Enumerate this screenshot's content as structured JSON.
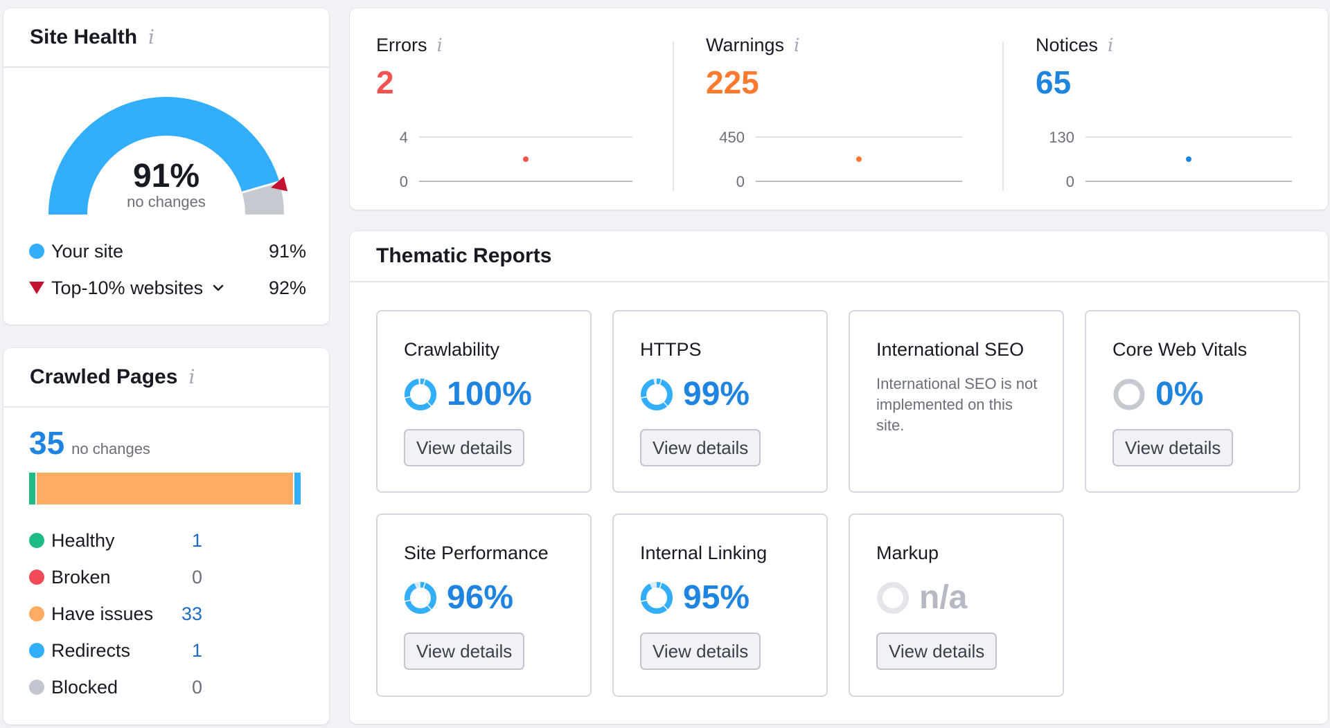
{
  "site_health": {
    "title": "Site Health",
    "value_text": "91%",
    "change_text": "no changes",
    "score": 91,
    "top10_score": 92,
    "legend": [
      {
        "label": "Your site",
        "value": "91%",
        "color": "#32aefd",
        "marker": "dot"
      },
      {
        "label": "Top-10% websites",
        "value": "92%",
        "color": "#c4112f",
        "marker": "triangle",
        "dropdown": true
      }
    ]
  },
  "crawled_pages": {
    "title": "Crawled Pages",
    "count": "35",
    "change_text": "no changes",
    "items": [
      {
        "label": "Healthy",
        "value": "1",
        "color": "#1ebb86",
        "value_color": "#1f6bbf",
        "count": 1
      },
      {
        "label": "Broken",
        "value": "0",
        "color": "#ef4a56",
        "value_color": "#6c6e79",
        "count": 0
      },
      {
        "label": "Have issues",
        "value": "33",
        "color": "#ffab63",
        "value_color": "#1f6bbf",
        "count": 33
      },
      {
        "label": "Redirects",
        "value": "1",
        "color": "#32aefd",
        "value_color": "#1f6bbf",
        "count": 1
      },
      {
        "label": "Blocked",
        "value": "0",
        "color": "#c2c5cf",
        "value_color": "#6c6e79",
        "count": 0
      }
    ]
  },
  "issues": [
    {
      "label": "Errors",
      "value": "2",
      "color": "#ef5350",
      "axis_max": "4",
      "axis_min": "0",
      "point": 2,
      "max": 4
    },
    {
      "label": "Warnings",
      "value": "225",
      "color": "#ff7a2f",
      "axis_max": "450",
      "axis_min": "0",
      "point": 225,
      "max": 450
    },
    {
      "label": "Notices",
      "value": "65",
      "color": "#1f83e0",
      "axis_max": "130",
      "axis_min": "0",
      "point": 65,
      "max": 130
    }
  ],
  "thematic": {
    "title": "Thematic Reports",
    "button_label": "View details",
    "reports": [
      {
        "name": "Crawlability",
        "percent_text": "100%",
        "percent": 100,
        "state": "score"
      },
      {
        "name": "HTTPS",
        "percent_text": "99%",
        "percent": 99,
        "state": "score"
      },
      {
        "name": "International SEO",
        "description": "International SEO is not implemented on this site.",
        "state": "text"
      },
      {
        "name": "Core Web Vitals",
        "percent_text": "0%",
        "percent": 0,
        "state": "score"
      },
      {
        "name": "Site Performance",
        "percent_text": "96%",
        "percent": 96,
        "state": "score"
      },
      {
        "name": "Internal Linking",
        "percent_text": "95%",
        "percent": 95,
        "state": "score"
      },
      {
        "name": "Markup",
        "percent_text": "n/a",
        "state": "na"
      }
    ]
  },
  "colors": {
    "accent_blue": "#1f83e0",
    "gauge_blue": "#32aefd",
    "gauge_gray": "#c7c9d1",
    "na_gray": "#c2c5cf"
  }
}
